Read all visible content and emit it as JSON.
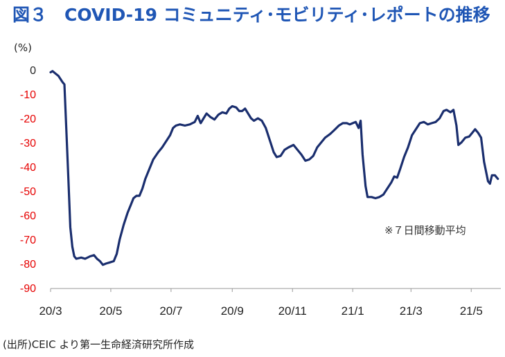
{
  "title": "図３　COVID-19 コミュニティ･モビリティ･レポートの推移",
  "unit_label": "(%)",
  "source": "(出所)CEIC より第一生命経済研究所作成",
  "chart_data": {
    "type": "line",
    "ylim": [
      -90,
      0
    ],
    "yticks": [
      0,
      -10,
      -20,
      -30,
      -40,
      -50,
      -60,
      -70,
      -80,
      -90
    ],
    "xlim": [
      "2020-03-01",
      "2021-05-31"
    ],
    "xtick_labels": [
      "20/3",
      "20/5",
      "20/7",
      "20/9",
      "20/11",
      "21/1",
      "21/3",
      "21/5"
    ],
    "xtick_dates": [
      "2020-03-01",
      "2020-05-01",
      "2020-07-01",
      "2020-09-01",
      "2020-11-01",
      "2021-01-01",
      "2021-03-01",
      "2021-05-01"
    ],
    "annotation": "※７日間移動平均",
    "line_color": "#1a2e6e",
    "grid": false,
    "series": [
      {
        "values": [
          [
            "2020-03-01",
            -1
          ],
          [
            "2020-03-03",
            -0.5
          ],
          [
            "2020-03-06",
            -1.5
          ],
          [
            "2020-03-09",
            -2.5
          ],
          [
            "2020-03-13",
            -5
          ],
          [
            "2020-03-15",
            -6
          ],
          [
            "2020-03-17",
            -25
          ],
          [
            "2020-03-19",
            -45
          ],
          [
            "2020-03-21",
            -65
          ],
          [
            "2020-03-23",
            -73
          ],
          [
            "2020-03-25",
            -77
          ],
          [
            "2020-03-27",
            -78
          ],
          [
            "2020-04-01",
            -77.5
          ],
          [
            "2020-04-05",
            -78
          ],
          [
            "2020-04-10",
            -77
          ],
          [
            "2020-04-14",
            -76.5
          ],
          [
            "2020-04-17",
            -78
          ],
          [
            "2020-04-20",
            -79
          ],
          [
            "2020-04-23",
            -80.5
          ],
          [
            "2020-04-26",
            -80
          ],
          [
            "2020-04-30",
            -79.5
          ],
          [
            "2020-05-04",
            -79
          ],
          [
            "2020-05-07",
            -76
          ],
          [
            "2020-05-10",
            -70
          ],
          [
            "2020-05-14",
            -64
          ],
          [
            "2020-05-18",
            -59
          ],
          [
            "2020-05-21",
            -56
          ],
          [
            "2020-05-24",
            -53
          ],
          [
            "2020-05-27",
            -52
          ],
          [
            "2020-05-30",
            -52
          ],
          [
            "2020-06-02",
            -49
          ],
          [
            "2020-06-05",
            -45
          ],
          [
            "2020-06-09",
            -41
          ],
          [
            "2020-06-13",
            -37
          ],
          [
            "2020-06-18",
            -34
          ],
          [
            "2020-06-22",
            -32
          ],
          [
            "2020-06-26",
            -29.5
          ],
          [
            "2020-06-30",
            -27
          ],
          [
            "2020-07-03",
            -24
          ],
          [
            "2020-07-06",
            -23
          ],
          [
            "2020-07-10",
            -22.5
          ],
          [
            "2020-07-15",
            -23
          ],
          [
            "2020-07-20",
            -22.5
          ],
          [
            "2020-07-25",
            -21.5
          ],
          [
            "2020-07-28",
            -19
          ],
          [
            "2020-07-31",
            -22
          ],
          [
            "2020-08-03",
            -20
          ],
          [
            "2020-08-06",
            -18
          ],
          [
            "2020-08-10",
            -19.5
          ],
          [
            "2020-08-14",
            -20.5
          ],
          [
            "2020-08-18",
            -18.5
          ],
          [
            "2020-08-22",
            -17.5
          ],
          [
            "2020-08-26",
            -18
          ],
          [
            "2020-08-29",
            -16
          ],
          [
            "2020-09-01",
            -15
          ],
          [
            "2020-09-05",
            -15.5
          ],
          [
            "2020-09-08",
            -17
          ],
          [
            "2020-09-11",
            -17
          ],
          [
            "2020-09-14",
            -16
          ],
          [
            "2020-09-17",
            -18
          ],
          [
            "2020-09-20",
            -20
          ],
          [
            "2020-09-23",
            -21
          ],
          [
            "2020-09-27",
            -20
          ],
          [
            "2020-10-01",
            -21
          ],
          [
            "2020-10-05",
            -24
          ],
          [
            "2020-10-09",
            -29
          ],
          [
            "2020-10-13",
            -34
          ],
          [
            "2020-10-16",
            -36
          ],
          [
            "2020-10-20",
            -35.5
          ],
          [
            "2020-10-24",
            -33
          ],
          [
            "2020-10-28",
            -32
          ],
          [
            "2020-11-02",
            -31
          ],
          [
            "2020-11-06",
            -33
          ],
          [
            "2020-11-10",
            -35
          ],
          [
            "2020-11-14",
            -37.5
          ],
          [
            "2020-11-18",
            -37
          ],
          [
            "2020-11-22",
            -35.5
          ],
          [
            "2020-11-26",
            -32
          ],
          [
            "2020-11-30",
            -30
          ],
          [
            "2020-12-04",
            -28
          ],
          [
            "2020-12-09",
            -26.5
          ],
          [
            "2020-12-13",
            -25
          ],
          [
            "2020-12-18",
            -23
          ],
          [
            "2020-12-22",
            -22
          ],
          [
            "2020-12-26",
            -22
          ],
          [
            "2020-12-29",
            -22.5
          ],
          [
            "2021-01-01",
            -22
          ],
          [
            "2021-01-04",
            -21.5
          ],
          [
            "2021-01-07",
            -24
          ],
          [
            "2021-01-09",
            -21
          ],
          [
            "2021-01-11",
            -35
          ],
          [
            "2021-01-14",
            -48
          ],
          [
            "2021-01-16",
            -52.5
          ],
          [
            "2021-01-20",
            -52.5
          ],
          [
            "2021-01-24",
            -53
          ],
          [
            "2021-01-28",
            -52.5
          ],
          [
            "2021-02-01",
            -51.5
          ],
          [
            "2021-02-05",
            -49
          ],
          [
            "2021-02-09",
            -46.5
          ],
          [
            "2021-02-12",
            -44
          ],
          [
            "2021-02-15",
            -44.5
          ],
          [
            "2021-02-18",
            -41
          ],
          [
            "2021-02-22",
            -36
          ],
          [
            "2021-02-26",
            -32
          ],
          [
            "2021-03-02",
            -27
          ],
          [
            "2021-03-06",
            -24.5
          ],
          [
            "2021-03-10",
            -22
          ],
          [
            "2021-03-14",
            -21.5
          ],
          [
            "2021-03-18",
            -22.5
          ],
          [
            "2021-03-22",
            -22
          ],
          [
            "2021-03-26",
            -21.5
          ],
          [
            "2021-03-30",
            -20
          ],
          [
            "2021-04-03",
            -17
          ],
          [
            "2021-04-06",
            -16.5
          ],
          [
            "2021-04-10",
            -17.5
          ],
          [
            "2021-04-13",
            -16.5
          ],
          [
            "2021-04-16",
            -23
          ],
          [
            "2021-04-18",
            -31
          ],
          [
            "2021-04-21",
            -30
          ],
          [
            "2021-04-25",
            -28
          ],
          [
            "2021-04-29",
            -27.5
          ],
          [
            "2021-05-02",
            -26
          ],
          [
            "2021-05-05",
            -24.5
          ],
          [
            "2021-05-08",
            -26
          ],
          [
            "2021-05-11",
            -28
          ],
          [
            "2021-05-14",
            -38
          ],
          [
            "2021-05-18",
            -46
          ],
          [
            "2021-05-20",
            -47
          ],
          [
            "2021-05-22",
            -43.5
          ],
          [
            "2021-05-25",
            -43.5
          ],
          [
            "2021-05-28",
            -45
          ]
        ]
      }
    ]
  }
}
